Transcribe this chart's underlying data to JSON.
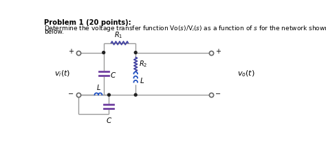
{
  "bg_color": "#ffffff",
  "text_color": "#000000",
  "wire_color": "#999999",
  "comp_color_r": "#4040a0",
  "comp_color_c": "#7040a0",
  "comp_color_l": "#2050c0",
  "node_color": "#222222",
  "terminal_color": "#666666"
}
